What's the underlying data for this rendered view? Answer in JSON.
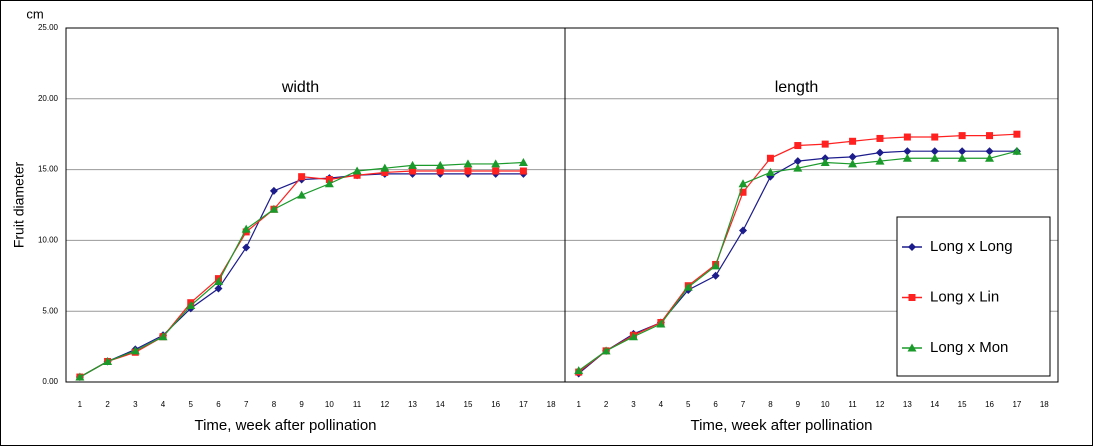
{
  "chart_data": [
    {
      "type": "line",
      "title": "width",
      "ylabel": "Fruit diameter",
      "yunit": "cm",
      "xlabel": "Time, week after pollination",
      "categories": [
        "1",
        "2",
        "3",
        "4",
        "5",
        "6",
        "7",
        "8",
        "9",
        "10",
        "11",
        "12",
        "13",
        "14",
        "15",
        "16",
        "17",
        "18"
      ],
      "ylim": [
        0,
        25
      ],
      "yticks": [
        {
          "value": 0,
          "label": "0.00"
        },
        {
          "value": 5,
          "label": "5.00"
        },
        {
          "value": 10,
          "label": "10.00"
        },
        {
          "value": 15,
          "label": "15.00"
        },
        {
          "value": 20,
          "label": "20.00"
        },
        {
          "value": 25,
          "label": "25.00"
        }
      ],
      "grid": true,
      "series": [
        {
          "color": "#1c1c8c",
          "marker": "diamond",
          "values": [
            0.35,
            1.45,
            2.3,
            3.3,
            5.2,
            6.6,
            9.5,
            13.5,
            14.3,
            14.4,
            14.6,
            14.7,
            14.7,
            14.7,
            14.7,
            14.7,
            14.7,
            null
          ]
        },
        {
          "color": "#ff2020",
          "marker": "square",
          "values": [
            0.35,
            1.45,
            2.1,
            3.2,
            5.6,
            7.3,
            10.6,
            12.2,
            14.5,
            14.3,
            14.6,
            14.8,
            14.9,
            14.9,
            14.9,
            14.9,
            14.9,
            null
          ]
        },
        {
          "color": "#1a9a2a",
          "marker": "triangle",
          "values": [
            0.35,
            1.45,
            2.2,
            3.2,
            5.4,
            7.1,
            10.8,
            12.2,
            13.2,
            14.0,
            14.9,
            15.1,
            15.3,
            15.3,
            15.4,
            15.4,
            15.5,
            null
          ]
        }
      ]
    },
    {
      "type": "line",
      "title": "length",
      "xlabel": "Time, week after pollination",
      "categories": [
        "1",
        "2",
        "3",
        "4",
        "5",
        "6",
        "7",
        "8",
        "9",
        "10",
        "11",
        "12",
        "13",
        "14",
        "15",
        "16",
        "17",
        "18"
      ],
      "ylim": [
        0,
        25
      ],
      "yticks": [
        0,
        5,
        10,
        15,
        20,
        25
      ],
      "grid": true,
      "legend": true,
      "series": [
        {
          "name": "Long x Long",
          "color": "#1c1c8c",
          "marker": "diamond",
          "values": [
            0.6,
            2.2,
            3.4,
            4.2,
            6.5,
            7.5,
            10.7,
            14.5,
            15.6,
            15.8,
            15.9,
            16.2,
            16.3,
            16.3,
            16.3,
            16.3,
            16.3,
            null
          ]
        },
        {
          "name": "Long x Lin",
          "color": "#ff2020",
          "marker": "square",
          "values": [
            0.7,
            2.2,
            3.3,
            4.2,
            6.8,
            8.3,
            13.4,
            15.8,
            16.7,
            16.8,
            17.0,
            17.2,
            17.3,
            17.3,
            17.4,
            17.4,
            17.5,
            null
          ]
        },
        {
          "name": "Long x Mon",
          "color": "#1a9a2a",
          "marker": "triangle",
          "values": [
            0.8,
            2.2,
            3.2,
            4.1,
            6.7,
            8.2,
            14.0,
            14.8,
            15.1,
            15.5,
            15.4,
            15.6,
            15.8,
            15.8,
            15.8,
            15.8,
            16.3,
            null
          ]
        }
      ]
    }
  ]
}
